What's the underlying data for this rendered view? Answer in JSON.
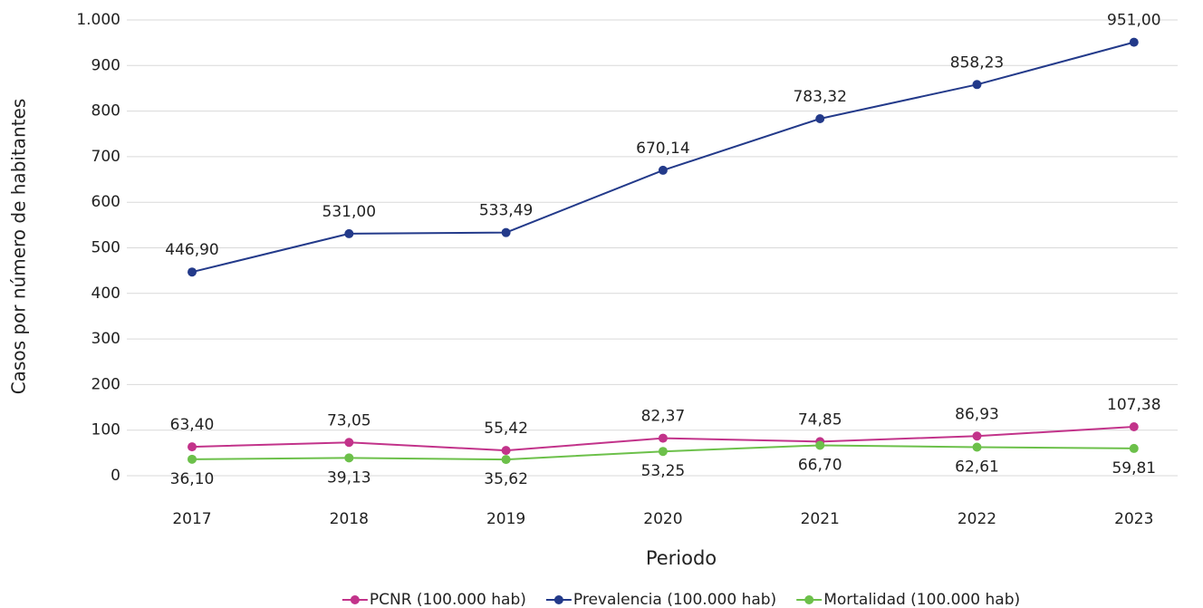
{
  "chart_data": {
    "type": "line",
    "y_label": "Casos por número de habitantes",
    "x_label": "Periodo",
    "categories": [
      "2017",
      "2018",
      "2019",
      "2020",
      "2021",
      "2022",
      "2023"
    ],
    "series": [
      {
        "name": "PCNR (100.000 hab)",
        "color": "#c2338a",
        "label_position": "above",
        "values": [
          63.4,
          73.05,
          55.42,
          82.37,
          74.85,
          86.93,
          107.38
        ],
        "value_labels": [
          "63,40",
          "73,05",
          "55,42",
          "82,37",
          "74,85",
          "86,93",
          "107,38"
        ]
      },
      {
        "name": "Prevalencia (100.000 hab)",
        "color": "#233a8a",
        "label_position": "above",
        "values": [
          446.9,
          531.0,
          533.49,
          670.14,
          783.32,
          858.23,
          951.0
        ],
        "value_labels": [
          "446,90",
          "531,00",
          "533,49",
          "670,14",
          "783,32",
          "858,23",
          "951,00"
        ]
      },
      {
        "name": "Mortalidad (100.000 hab)",
        "color": "#6cc04a",
        "label_position": "below",
        "values": [
          36.1,
          39.13,
          35.62,
          53.25,
          66.7,
          62.61,
          59.81
        ],
        "value_labels": [
          "36,10",
          "39,13",
          "35,62",
          "53,25",
          "66,70",
          "62,61",
          "59,81"
        ]
      }
    ],
    "ylim": [
      0,
      1000
    ],
    "yticks": [
      0,
      100,
      200,
      300,
      400,
      500,
      600,
      700,
      800,
      900,
      {
        "value": 1000,
        "label": "1.000"
      }
    ],
    "grid": true,
    "legend": "bottom"
  }
}
